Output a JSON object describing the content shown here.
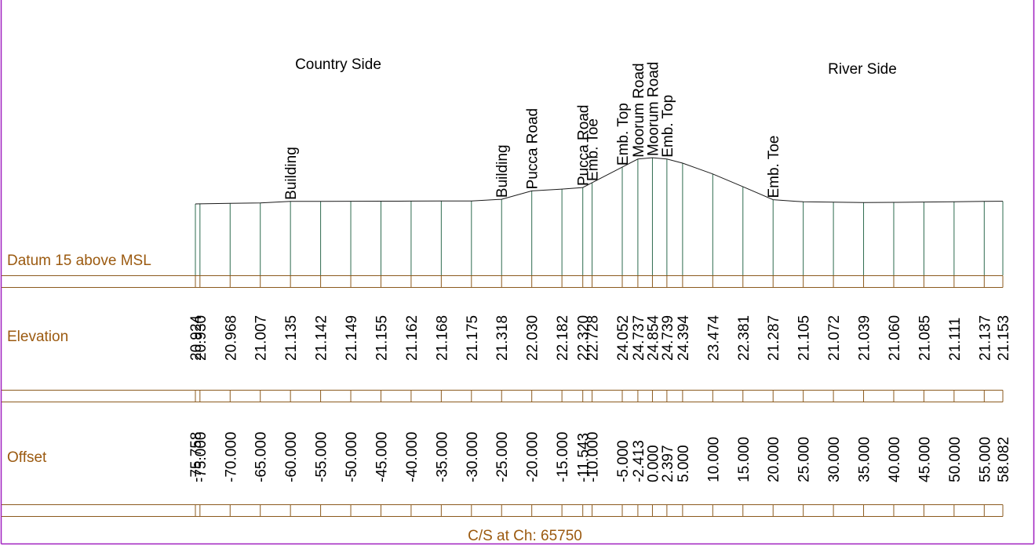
{
  "side_labels": {
    "country": "Country Side",
    "river": "River Side"
  },
  "row_labels": {
    "datum": "Datum 15 above MSL",
    "elevation": "Elevation",
    "offset": "Offset"
  },
  "footer": "C/S at Ch: 65750",
  "colors": {
    "profile": "#1a1a1a",
    "verticals": "#2e6b4f",
    "table_lines": "#8b5a1e",
    "row_label_text": "#9b5a10",
    "border": "#a020c0",
    "text": "#000000"
  },
  "chart_data": {
    "type": "line",
    "title": "C/S at Ch: 65750",
    "datum": 15,
    "stations": [
      {
        "offset": "-75.758",
        "elevation": "20.924",
        "feature": ""
      },
      {
        "offset": "-75.000",
        "elevation": "20.930",
        "feature": ""
      },
      {
        "offset": "-70.000",
        "elevation": "20.968",
        "feature": ""
      },
      {
        "offset": "-65.000",
        "elevation": "21.007",
        "feature": ""
      },
      {
        "offset": "-60.000",
        "elevation": "21.135",
        "feature": "Building"
      },
      {
        "offset": "-55.000",
        "elevation": "21.142",
        "feature": ""
      },
      {
        "offset": "-50.000",
        "elevation": "21.149",
        "feature": ""
      },
      {
        "offset": "-45.000",
        "elevation": "21.155",
        "feature": ""
      },
      {
        "offset": "-40.000",
        "elevation": "21.162",
        "feature": ""
      },
      {
        "offset": "-35.000",
        "elevation": "21.168",
        "feature": ""
      },
      {
        "offset": "-30.000",
        "elevation": "21.175",
        "feature": ""
      },
      {
        "offset": "-25.000",
        "elevation": "21.318",
        "feature": "Building"
      },
      {
        "offset": "-20.000",
        "elevation": "22.030",
        "feature": "Pucca Road"
      },
      {
        "offset": "-15.000",
        "elevation": "22.182",
        "feature": ""
      },
      {
        "offset": "-11.543",
        "elevation": "22.320",
        "feature": "Pucca Road"
      },
      {
        "offset": "-10.000",
        "elevation": "22.728",
        "feature": "Emb. Toe"
      },
      {
        "offset": "-5.000",
        "elevation": "24.052",
        "feature": "Emb. Top"
      },
      {
        "offset": "-2.413",
        "elevation": "24.737",
        "feature": "Moorum Road"
      },
      {
        "offset": "0.000",
        "elevation": "24.854",
        "feature": "Moorum Road"
      },
      {
        "offset": "2.397",
        "elevation": "24.739",
        "feature": "Emb. Top"
      },
      {
        "offset": "5.000",
        "elevation": "24.394",
        "feature": ""
      },
      {
        "offset": "10.000",
        "elevation": "23.474",
        "feature": ""
      },
      {
        "offset": "15.000",
        "elevation": "22.381",
        "feature": ""
      },
      {
        "offset": "20.000",
        "elevation": "21.287",
        "feature": "Emb. Toe"
      },
      {
        "offset": "25.000",
        "elevation": "21.105",
        "feature": ""
      },
      {
        "offset": "30.000",
        "elevation": "21.072",
        "feature": ""
      },
      {
        "offset": "35.000",
        "elevation": "21.039",
        "feature": ""
      },
      {
        "offset": "40.000",
        "elevation": "21.060",
        "feature": ""
      },
      {
        "offset": "45.000",
        "elevation": "21.085",
        "feature": ""
      },
      {
        "offset": "50.000",
        "elevation": "21.111",
        "feature": ""
      },
      {
        "offset": "55.000",
        "elevation": "21.137",
        "feature": ""
      },
      {
        "offset": "58.082",
        "elevation": "21.153",
        "feature": ""
      }
    ]
  }
}
